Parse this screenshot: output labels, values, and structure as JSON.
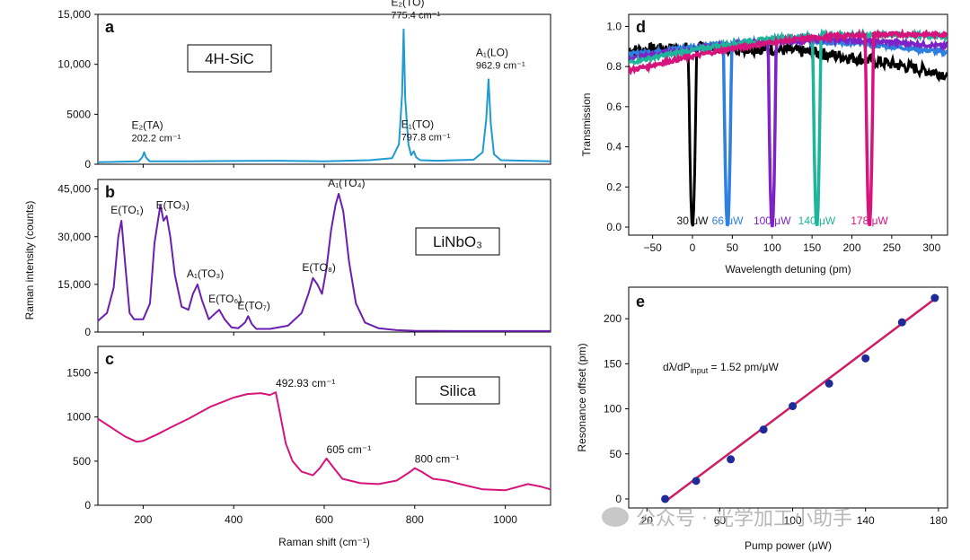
{
  "watermark": "公众号 · 光学加工小助手",
  "colors": {
    "sic": "#1f9bd1",
    "linbo3": "#6a1fb0",
    "silica": "#d6147c",
    "fit": "#cc1f66",
    "point": "#1f2a99",
    "black": "#000000",
    "blue": "#2d7fe0",
    "purple": "#7d22c7",
    "teal": "#1fb59a",
    "magenta": "#d6147c"
  },
  "left": {
    "xlabel": "Raman shift (cm⁻¹)",
    "ylabel": "Raman intensity (counts)",
    "xticks": [
      "200",
      "400",
      "600",
      "800",
      "1000"
    ],
    "xlim": [
      100,
      1100
    ]
  },
  "chart_data": [
    {
      "panel": "a",
      "type": "line",
      "box_label": "4H-SiC",
      "ylim": [
        0,
        15000
      ],
      "yticks": [
        "0",
        "5000",
        "10,000",
        "15,000"
      ],
      "series": [
        {
          "x": [
            100,
            190,
            198,
            202.2,
            206,
            214,
            300,
            500,
            600,
            700,
            750,
            765,
            772,
            775.4,
            779,
            786,
            792,
            797.8,
            803,
            812,
            850,
            930,
            950,
            958,
            962.9,
            968,
            975,
            990,
            1100
          ],
          "y": [
            200,
            300,
            700,
            1200,
            700,
            300,
            300,
            350,
            300,
            400,
            600,
            2000,
            7000,
            13500,
            6500,
            2000,
            900,
            1300,
            700,
            400,
            350,
            450,
            1200,
            4500,
            8500,
            4000,
            1000,
            400,
            300
          ]
        }
      ],
      "annotations": [
        {
          "text": "E₂(TA)",
          "sub": "202.2 cm⁻¹",
          "x": 202.2,
          "y": 1200
        },
        {
          "text": "E₂(TO)",
          "sub": "775.4 cm⁻¹",
          "x": 775.4,
          "y": 13500
        },
        {
          "text": "E₁(TO)",
          "sub": "797.8 cm⁻¹",
          "x": 797.8,
          "y": 1300
        },
        {
          "text": "A₁(LO)",
          "sub": "962.9 cm⁻¹",
          "x": 962.9,
          "y": 8500
        }
      ]
    },
    {
      "panel": "b",
      "type": "line",
      "box_label": "LiNbO₃",
      "ylim": [
        0,
        48000
      ],
      "yticks": [
        "0",
        "15,000",
        "30,000",
        "45,000"
      ],
      "series": [
        {
          "x": [
            100,
            120,
            135,
            145,
            152,
            160,
            170,
            180,
            200,
            215,
            225,
            238,
            245,
            252,
            260,
            270,
            285,
            300,
            310,
            320,
            330,
            345,
            360,
            368,
            380,
            395,
            410,
            425,
            432,
            440,
            450,
            480,
            520,
            550,
            565,
            575,
            585,
            595,
            605,
            615,
            625,
            632,
            642,
            655,
            670,
            690,
            720,
            760,
            800,
            900,
            1000,
            1100
          ],
          "y": [
            3500,
            6000,
            14000,
            30000,
            35000,
            22000,
            6000,
            4000,
            4000,
            9000,
            28000,
            40000,
            35000,
            36500,
            30000,
            18000,
            8000,
            7000,
            12000,
            15000,
            10000,
            4000,
            6000,
            7000,
            4000,
            1500,
            1200,
            3000,
            5000,
            2500,
            1000,
            1000,
            2000,
            6000,
            12000,
            17000,
            15000,
            12000,
            20000,
            32000,
            40000,
            43500,
            38000,
            22000,
            9000,
            3000,
            1200,
            600,
            400,
            300,
            300,
            300
          ]
        }
      ],
      "annotations": [
        {
          "text": "E(TO₁)",
          "x": 152,
          "y": 35000
        },
        {
          "text": "E(TO₃)",
          "x": 252,
          "y": 36500
        },
        {
          "text": "A₁(TO₃)",
          "x": 320,
          "y": 15000
        },
        {
          "text": "E(TO₆)",
          "x": 368,
          "y": 7000
        },
        {
          "text": "E(TO₇)",
          "x": 432,
          "y": 5000
        },
        {
          "text": "E(TO₈)",
          "x": 575,
          "y": 17000
        },
        {
          "text": "A₁(TO₄)",
          "x": 632,
          "y": 43500
        }
      ]
    },
    {
      "panel": "c",
      "type": "line",
      "box_label": "Silica",
      "ylim": [
        0,
        1800
      ],
      "yticks": [
        "0",
        "500",
        "1000",
        "1500"
      ],
      "series": [
        {
          "x": [
            100,
            130,
            160,
            185,
            200,
            230,
            260,
            300,
            350,
            400,
            430,
            460,
            480,
            492.93,
            500,
            515,
            530,
            550,
            575,
            590,
            605,
            620,
            640,
            680,
            720,
            760,
            790,
            800,
            815,
            840,
            870,
            900,
            950,
            1000,
            1050,
            1080,
            1100
          ],
          "y": [
            980,
            880,
            780,
            720,
            730,
            800,
            880,
            980,
            1120,
            1220,
            1260,
            1270,
            1250,
            1280,
            1100,
            700,
            500,
            380,
            340,
            420,
            530,
            430,
            300,
            250,
            240,
            280,
            380,
            420,
            380,
            300,
            280,
            240,
            180,
            170,
            240,
            210,
            180
          ]
        }
      ],
      "annotations": [
        {
          "text": "492.93 cm⁻¹",
          "x": 492.93,
          "y": 1280
        },
        {
          "text": "605 cm⁻¹",
          "x": 605,
          "y": 530
        },
        {
          "text": "800 cm⁻¹",
          "x": 800,
          "y": 420
        }
      ]
    },
    {
      "panel": "d",
      "type": "line",
      "xlabel": "Wavelength detuning (pm)",
      "ylabel": "Transmission",
      "xlim": [
        -80,
        320
      ],
      "ylim": [
        -0.04,
        1.06
      ],
      "xticks": [
        "−50",
        "0",
        "50",
        "100",
        "150",
        "200",
        "250",
        "300"
      ],
      "yticks": [
        "0.0",
        "0.2",
        "0.4",
        "0.6",
        "0.8",
        "1.0"
      ],
      "series": [
        {
          "name": "30 μW",
          "color_key": "black",
          "dip": 0,
          "start": 0.88,
          "end": 0.76
        },
        {
          "name": "66 μW",
          "color_key": "blue",
          "dip": 44,
          "start": 0.86,
          "end": 0.87
        },
        {
          "name": "100 μW",
          "color_key": "purple",
          "dip": 100,
          "start": 0.84,
          "end": 0.9
        },
        {
          "name": "140 μW",
          "color_key": "teal",
          "dip": 156,
          "start": 0.82,
          "end": 0.95
        },
        {
          "name": "178 μW",
          "color_key": "magenta",
          "dip": 222,
          "start": 0.78,
          "end": 0.96
        }
      ]
    },
    {
      "panel": "e",
      "type": "scatter",
      "xlabel": "Pump power (μW)",
      "ylabel": "Resonance offset (pm)",
      "xlim": [
        10,
        185
      ],
      "ylim": [
        -10,
        235
      ],
      "xticks": [
        "20",
        "60",
        "100",
        "140",
        "180"
      ],
      "yticks": [
        "0",
        "50",
        "100",
        "150",
        "200"
      ],
      "fit_label": "dλ/dP",
      "fit_label_sub": "input",
      "fit_label_tail": " = 1.52 pm/μW",
      "points": {
        "x": [
          30,
          47,
          66,
          84,
          100,
          120,
          140,
          160,
          178
        ],
        "y": [
          0,
          20,
          44,
          77,
          103,
          128,
          156,
          196,
          223
        ]
      },
      "fit": {
        "x": [
          30,
          180
        ],
        "y": [
          -3,
          225
        ]
      }
    }
  ]
}
